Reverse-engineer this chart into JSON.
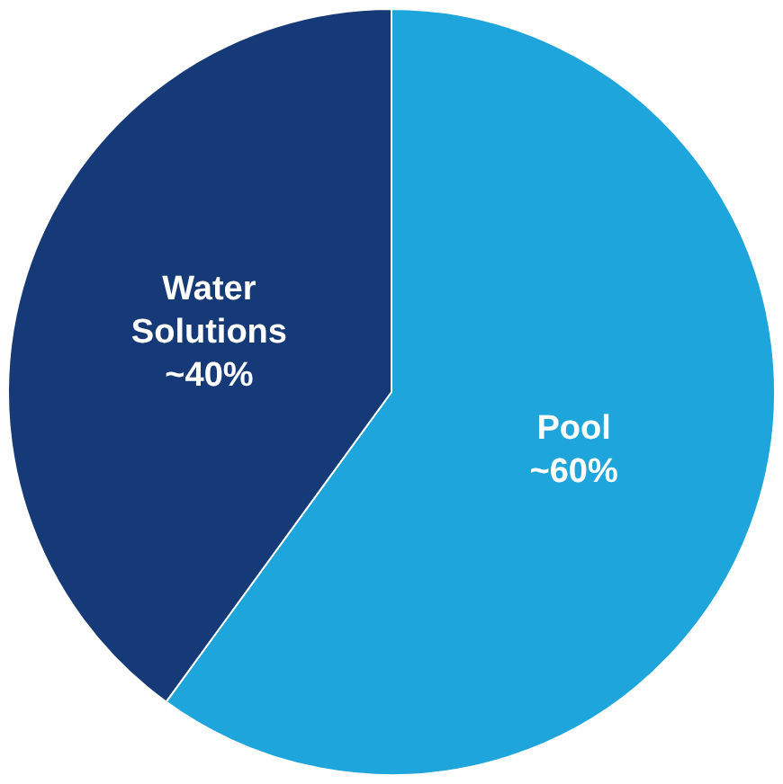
{
  "chart_data": {
    "type": "pie",
    "categories": [
      "Pool",
      "Water Solutions"
    ],
    "values": [
      60,
      40
    ],
    "colors": [
      "#1ea5dc",
      "#163a78"
    ],
    "value_labels": [
      "~60%",
      "~40%"
    ],
    "legend": false
  }
}
